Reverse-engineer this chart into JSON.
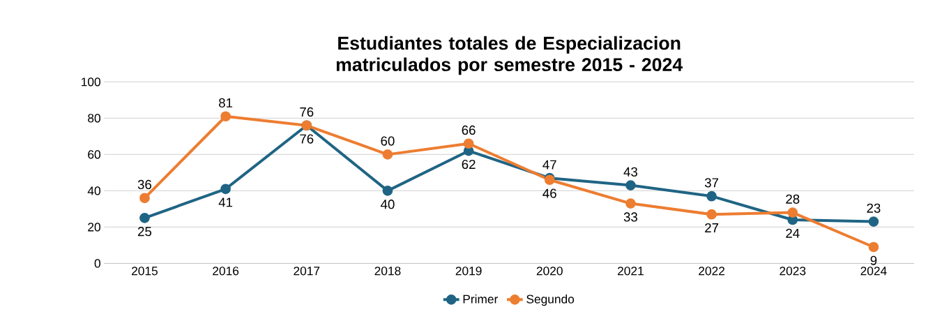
{
  "chart_data": {
    "type": "line",
    "title": "Estudiantes totales de Especializacion matriculados por semestre 2015 - 2024",
    "categories": [
      "2015",
      "2016",
      "2017",
      "2018",
      "2019",
      "2020",
      "2021",
      "2022",
      "2023",
      "2024"
    ],
    "series": [
      {
        "name": "Primer",
        "color": "#1f6484",
        "values": [
          25,
          41,
          76,
          40,
          62,
          47,
          43,
          37,
          24,
          23
        ]
      },
      {
        "name": "Segundo",
        "color": "#ed7d31",
        "values": [
          36,
          81,
          76,
          60,
          66,
          46,
          33,
          27,
          28,
          9
        ]
      }
    ],
    "ylim": [
      0,
      100
    ],
    "yticks": [
      0,
      20,
      40,
      60,
      80,
      100
    ],
    "grid": "y",
    "legend": "bottom",
    "marker": "circle",
    "line_style": "solid",
    "data_labels": true
  }
}
